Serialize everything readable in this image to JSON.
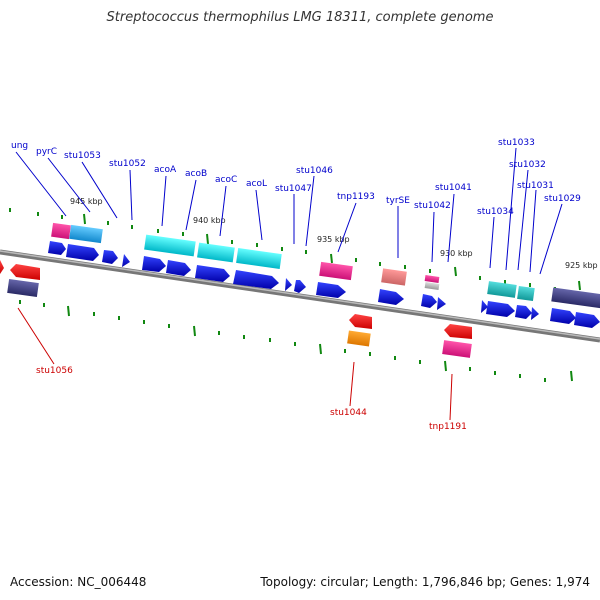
{
  "title": "Streptococcus thermophilus LMG 18311, complete genome",
  "footer": {
    "accession": "Accession: NC_006448",
    "summary": "Topology: circular; Length: 1,796,846 bp; Genes: 1,974"
  },
  "colors": {
    "label_blue": "#0000cc",
    "label_red": "#cc0000",
    "backbone": "#888888",
    "tick": "#118811"
  },
  "scale_labels": [
    "945 kbp",
    "940 kbp",
    "935 kbp",
    "930 kbp",
    "925 kbp"
  ],
  "gene_labels_top": [
    "ung",
    "pyrC",
    "stu1053",
    "stu1052",
    "acoA",
    "acoB",
    "acoC",
    "acoL",
    "stu1047",
    "stu1046",
    "tnp1193",
    "tyrSE",
    "stu1042",
    "stu1041",
    "stu1034",
    "stu1033",
    "stu1032",
    "stu1031",
    "stu1029"
  ],
  "gene_labels_bottom": [
    "stu1056",
    "stu1044",
    "tnp1191"
  ]
}
